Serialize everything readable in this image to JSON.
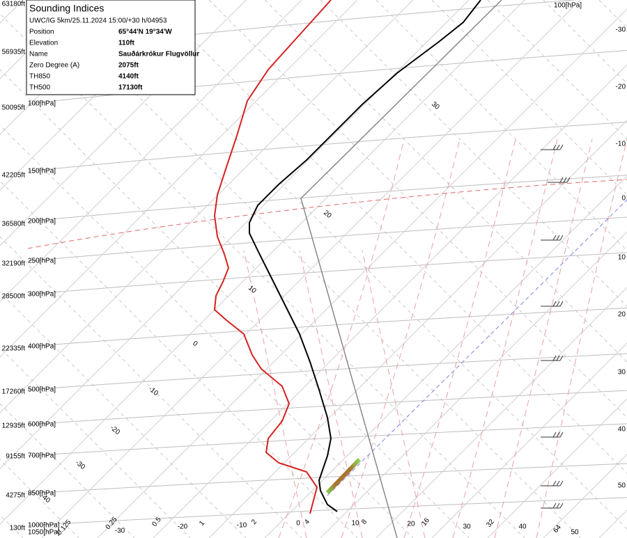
{
  "info": {
    "title": "Sounding Indices",
    "subtitle": "UWC/IG 5km/25.11.2024 15:00/+30 h/04953",
    "rows": [
      [
        "Position",
        "65°44'N 19°34'W"
      ],
      [
        "Elevation",
        "110ft"
      ],
      [
        "Name",
        "Sauðárkrókur Flugvöllur"
      ],
      [
        "Zero Degree (A)",
        "2075ft"
      ],
      [
        "TH850",
        "4140ft"
      ],
      [
        "TH500",
        "17130ft"
      ]
    ]
  },
  "altitude_labels": [
    "63180ft",
    "56935ft",
    "50095ft",
    "42205ft",
    "36580ft",
    "32190ft",
    "28500ft",
    "22335ft",
    "17260ft",
    "12935ft",
    "9155ft",
    "4275ft",
    "130ft"
  ],
  "pressure_labels": [
    "100[hPa]",
    "150[hPa]",
    "200[hPa]",
    "250[hPa]",
    "300[hPa]",
    "400[hPa]",
    "500[hPa]",
    "600[hPa]",
    "700[hPa]",
    "850[hPa]",
    "1000[hPa]",
    "1050[hPa]"
  ],
  "top_pressure_label": "100[hPa]",
  "right_labels": [
    "-30",
    "-20",
    "-10",
    "0",
    "10",
    "20",
    "30",
    "40",
    "50"
  ],
  "diagonal_labels": [
    "-40",
    "-30",
    "-20",
    "-10",
    "0",
    "10",
    "20",
    "30"
  ],
  "bottom_labels": [
    "0.125",
    "0.25",
    "0.5",
    "-30",
    "-20",
    "1",
    "-10",
    "2",
    "0",
    "4",
    "10",
    "8",
    "20",
    "16",
    "30",
    "32",
    "40",
    "64",
    "50"
  ]
}
